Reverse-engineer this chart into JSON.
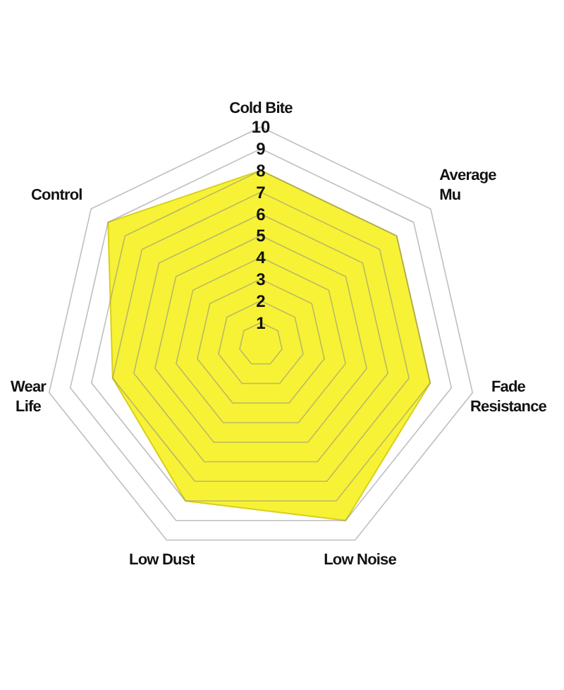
{
  "chart_data": {
    "type": "radar",
    "categories": [
      "Cold Bite",
      "Average\nMu",
      "Fade\nResistance",
      "Low Noise",
      "Low Dust",
      "Wear\nLife",
      "Control"
    ],
    "series": [
      {
        "color": "#f7f236",
        "values": [
          8,
          8,
          8,
          9,
          8,
          7,
          9
        ]
      }
    ],
    "ylim": [
      0,
      10
    ],
    "yticks": [
      1,
      2,
      3,
      4,
      5,
      6,
      7,
      8,
      9,
      10
    ],
    "grid": true
  }
}
